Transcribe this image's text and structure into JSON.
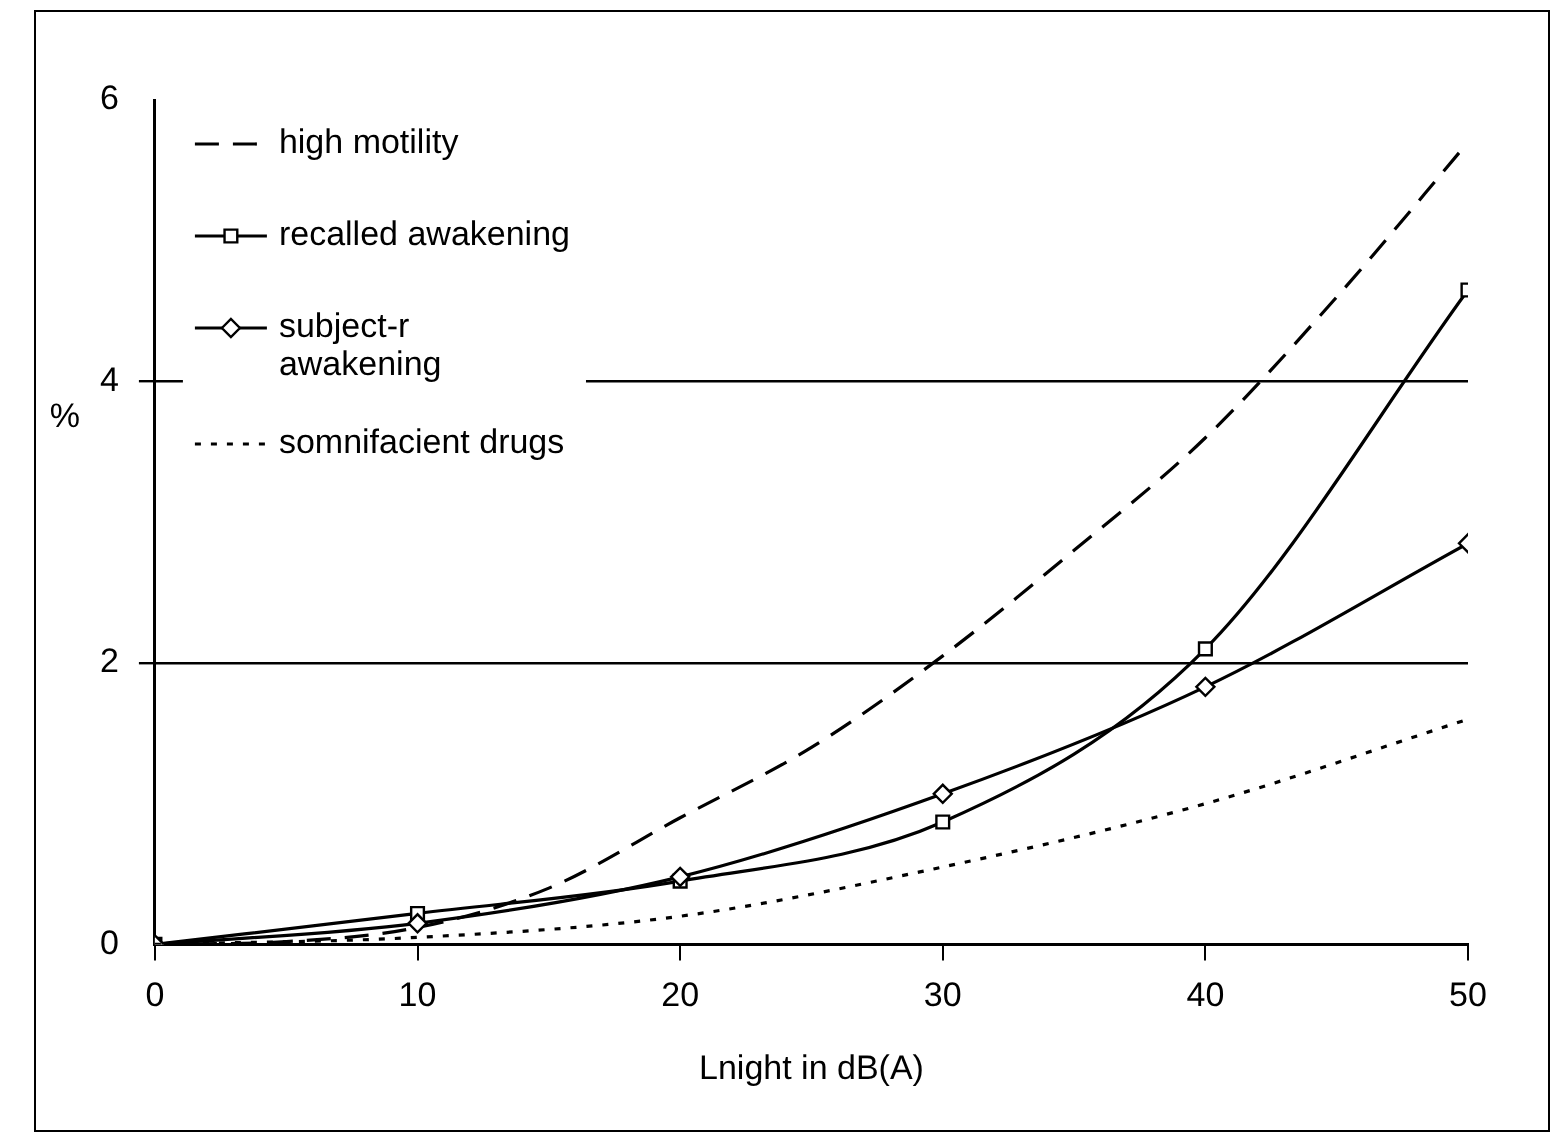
{
  "chart_data": {
    "type": "line",
    "xlabel": "Lnight in dB(A)",
    "ylabel": "%",
    "xlim": [
      0,
      50
    ],
    "xticks": [
      0,
      10,
      20,
      30,
      40,
      50
    ],
    "ylim": [
      0,
      6
    ],
    "yticks": [
      0,
      2,
      4,
      6
    ],
    "grid": "y",
    "legend": "top left",
    "series": [
      {
        "name": "high motility",
        "color": "#000000",
        "line_style": "dashed",
        "marker": "none",
        "x": [
          0,
          5,
          10,
          15,
          20,
          25,
          30,
          35,
          40,
          45,
          50
        ],
        "values": [
          0,
          0.02,
          0.12,
          0.4,
          0.9,
          1.4,
          2.05,
          2.8,
          3.6,
          4.6,
          5.7
        ]
      },
      {
        "name": "recalled awakening",
        "color": "#000000",
        "line_style": "solid",
        "marker": "square",
        "x": [
          0,
          10,
          20,
          30,
          40,
          50
        ],
        "values": [
          0,
          0.22,
          0.45,
          0.87,
          2.1,
          4.65
        ]
      },
      {
        "name": "subject-r awakening",
        "color": "#000000",
        "line_style": "solid",
        "marker": "diamond",
        "x": [
          0,
          10,
          20,
          30,
          40,
          50
        ],
        "values": [
          0,
          0.15,
          0.48,
          1.07,
          1.83,
          2.85
        ]
      },
      {
        "name": "somnifacient drugs",
        "color": "#000000",
        "line_style": "dotted",
        "marker": "none",
        "x": [
          0,
          10,
          20,
          30,
          40,
          50
        ],
        "values": [
          0,
          0.05,
          0.2,
          0.55,
          1.0,
          1.6
        ]
      }
    ]
  }
}
